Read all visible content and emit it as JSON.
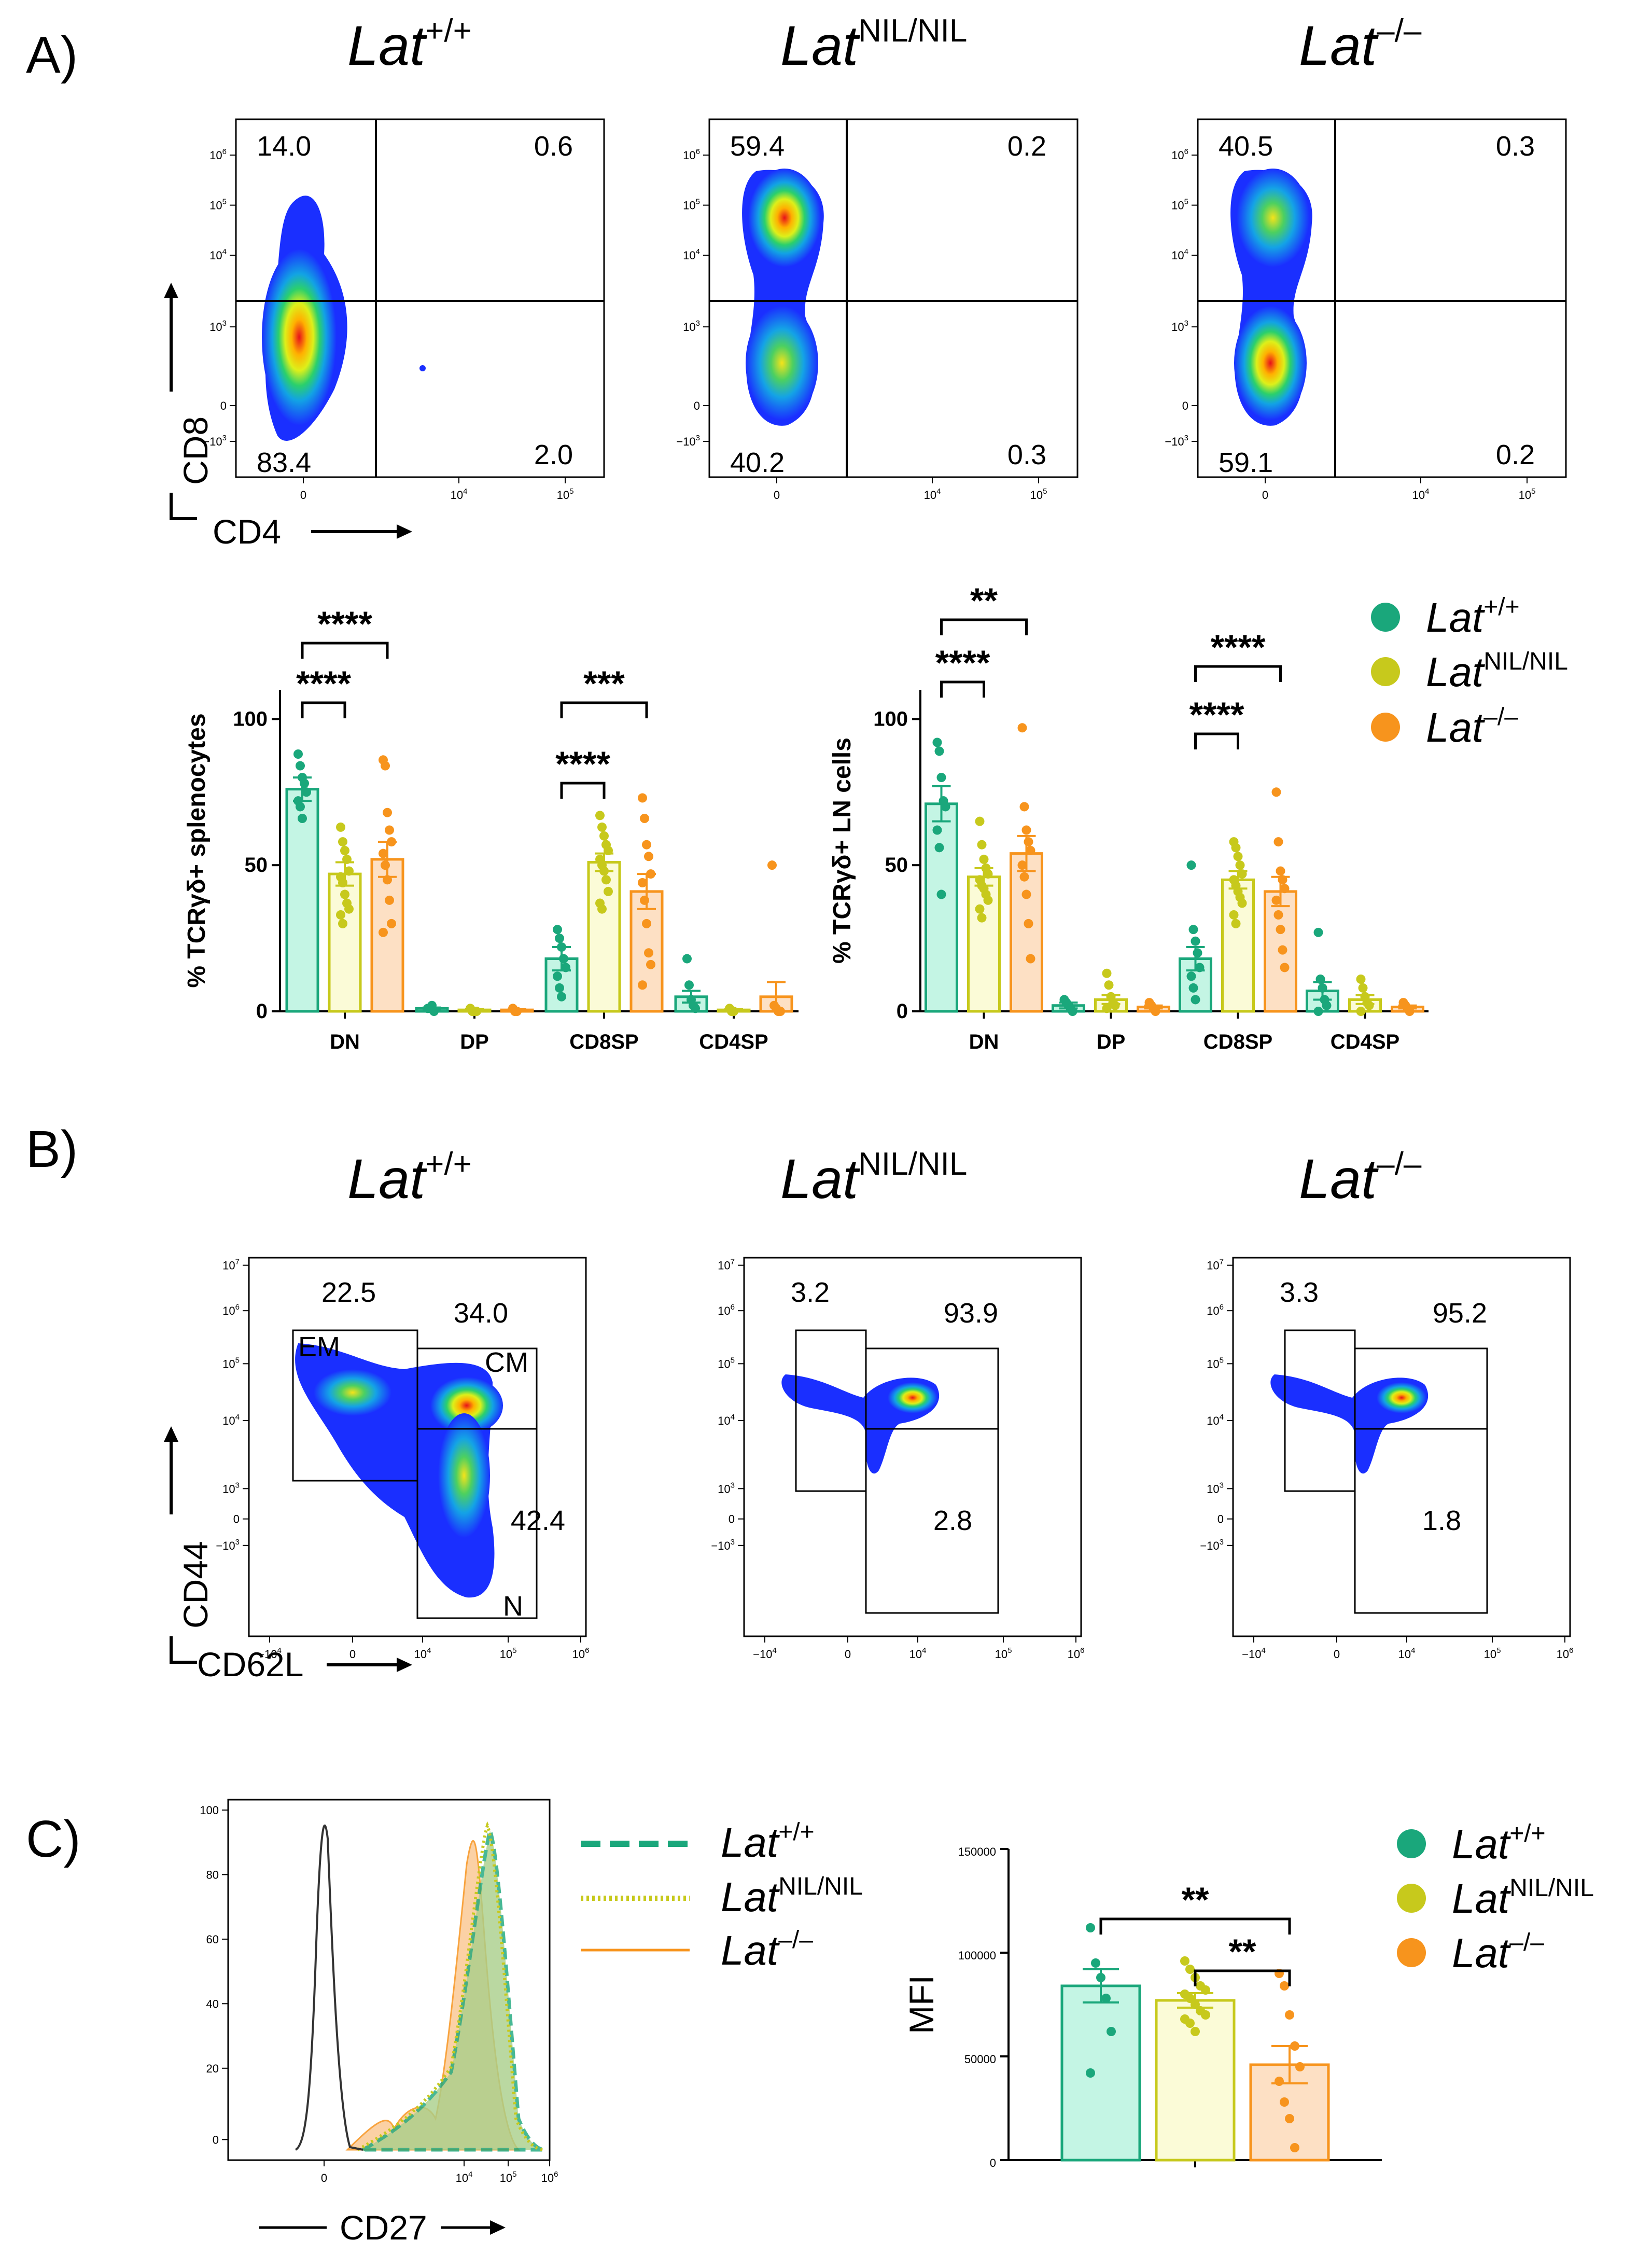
{
  "panels": {
    "a": "A)",
    "b": "B)",
    "c": "C)"
  },
  "genotypes": [
    {
      "base": "Lat",
      "sup": "+/+"
    },
    {
      "base": "Lat",
      "sup": "NIL/NIL"
    },
    {
      "base": "Lat",
      "sup": "–/–"
    }
  ],
  "colors": {
    "wt": "#1aa77b",
    "nil": "#c7c91c",
    "ko": "#f7941d",
    "wt_fill": "#c4f5e4",
    "nil_fill": "#fbfbd7",
    "ko_fill": "#fde0c4"
  },
  "flow_a": {
    "x_axis": "CD4",
    "y_axis": "CD8",
    "y_ticks": [
      "10^6",
      "10^5",
      "10^4",
      "10^3",
      "0",
      "-10^3"
    ],
    "x_ticks": [
      "0",
      "10^4",
      "10^5"
    ],
    "plots": [
      {
        "ul": "14.0",
        "ur": "0.6",
        "ll": "83.4",
        "lr": "2.0"
      },
      {
        "ul": "59.4",
        "ur": "0.2",
        "ll": "40.2",
        "lr": "0.3"
      },
      {
        "ul": "40.5",
        "ur": "0.3",
        "ll": "59.1",
        "lr": "0.2"
      }
    ]
  },
  "flow_b": {
    "x_axis": "CD62L",
    "y_axis": "CD44",
    "y_ticks": [
      "10^7",
      "10^6",
      "10^5",
      "10^4",
      "10^3",
      "0",
      "-10^3"
    ],
    "x_ticks": [
      "-10^4",
      "0",
      "10^4",
      "10^5",
      "10^6"
    ],
    "gate_names": {
      "em": "EM",
      "cm": "CM",
      "n": "N"
    },
    "plots": [
      {
        "em": "22.5",
        "cm": "34.0",
        "n": "42.4"
      },
      {
        "em": "3.2",
        "cm": "93.9",
        "n": "2.8"
      },
      {
        "em": "3.3",
        "cm": "95.2",
        "n": "1.8"
      }
    ]
  },
  "histogram_c": {
    "x_axis": "CD27",
    "y_ticks": [
      "100",
      "80",
      "60",
      "40",
      "20",
      "0"
    ],
    "x_ticks": [
      "0",
      "10^4",
      "10^5",
      "10^6"
    ]
  },
  "chart_data": [
    {
      "type": "bar",
      "title": "",
      "ylabel": "% TCRγδ+ splenocytes",
      "categories": [
        "DN",
        "DP",
        "CD8SP",
        "CD4SP"
      ],
      "ylim": [
        0,
        110
      ],
      "yticks": [
        "0",
        "50",
        "100"
      ],
      "series": [
        {
          "name": "Lat+/+",
          "values": [
            76,
            1,
            18,
            5
          ],
          "sem": [
            4,
            0.3,
            4,
            2
          ],
          "points": [
            [
              88,
              84,
              80,
              78,
              75,
              72,
              70,
              66
            ],
            [
              1,
              1,
              2,
              0
            ],
            [
              28,
              25,
              22,
              18,
              15,
              12,
              8,
              5
            ],
            [
              18,
              9,
              4,
              2,
              1
            ]
          ]
        },
        {
          "name": "LatNIL/NIL",
          "values": [
            47,
            0.5,
            51,
            0.5
          ],
          "sem": [
            4,
            0.2,
            3,
            0.2
          ],
          "points": [
            [
              63,
              58,
              55,
              52,
              48,
              46,
              44,
              40,
              37,
              35,
              33,
              30
            ],
            [
              1,
              0,
              0,
              0
            ],
            [
              67,
              63,
              60,
              57,
              55,
              52,
              50,
              48,
              45,
              41,
              37,
              35
            ],
            [
              1,
              0,
              0
            ]
          ]
        },
        {
          "name": "Lat–/–",
          "values": [
            52,
            0.5,
            41,
            5
          ],
          "sem": [
            6,
            0.2,
            6,
            5
          ],
          "points": [
            [
              86,
              84,
              68,
              62,
              58,
              54,
              50,
              45,
              38,
              30,
              27
            ],
            [
              1,
              0,
              0
            ],
            [
              73,
              66,
              57,
              53,
              47,
              44,
              38,
              30,
              20,
              16,
              9
            ],
            [
              50,
              2,
              1,
              0,
              0
            ]
          ]
        }
      ],
      "significance": [
        {
          "label": "****",
          "between": [
            "Lat+/+",
            "LatNIL/NIL"
          ],
          "category": "DN"
        },
        {
          "label": "****",
          "between": [
            "Lat+/+",
            "Lat–/–"
          ],
          "category": "DN"
        },
        {
          "label": "****",
          "between": [
            "Lat+/+",
            "LatNIL/NIL"
          ],
          "category": "CD8SP"
        },
        {
          "label": "***",
          "between": [
            "Lat+/+",
            "Lat–/–"
          ],
          "category": "CD8SP"
        }
      ]
    },
    {
      "type": "bar",
      "title": "",
      "ylabel": "% TCRγδ+ LN cells",
      "categories": [
        "DN",
        "DP",
        "CD8SP",
        "CD4SP"
      ],
      "ylim": [
        0,
        110
      ],
      "yticks": [
        "0",
        "50",
        "100"
      ],
      "series": [
        {
          "name": "Lat+/+",
          "values": [
            71,
            2,
            18,
            7
          ],
          "sem": [
            6,
            1,
            4,
            3
          ],
          "points": [
            [
              92,
              89,
              80,
              72,
              70,
              62,
              56,
              40
            ],
            [
              4,
              3,
              2,
              1,
              0
            ],
            [
              50,
              28,
              24,
              20,
              15,
              12,
              8,
              4
            ],
            [
              27,
              11,
              8,
              4,
              2,
              0
            ]
          ]
        },
        {
          "name": "LatNIL/NIL",
          "values": [
            46,
            4,
            45,
            4
          ],
          "sem": [
            3,
            1.5,
            3,
            1.5
          ],
          "points": [
            [
              65,
              57,
              52,
              49,
              47,
              45,
              43,
              42,
              40,
              38,
              35,
              32
            ],
            [
              13,
              9,
              5,
              3,
              2,
              1
            ],
            [
              58,
              56,
              53,
              50,
              47,
              45,
              43,
              41,
              39,
              37,
              33,
              30
            ],
            [
              11,
              8,
              5,
              3,
              2,
              0
            ]
          ]
        },
        {
          "name": "Lat–/–",
          "values": [
            54,
            1.5,
            41,
            1.5
          ],
          "sem": [
            6,
            0.5,
            5,
            0.5
          ],
          "points": [
            [
              97,
              70,
              62,
              58,
              55,
              50,
              46,
              40,
              30,
              18
            ],
            [
              3,
              2,
              1,
              0
            ],
            [
              75,
              58,
              48,
              45,
              42,
              38,
              33,
              28,
              21,
              15
            ],
            [
              3,
              2,
              1,
              0
            ]
          ]
        }
      ],
      "significance": [
        {
          "label": "****",
          "between": [
            "Lat+/+",
            "LatNIL/NIL"
          ],
          "category": "DN"
        },
        {
          "label": "**",
          "between": [
            "Lat+/+",
            "Lat–/–"
          ],
          "category": "DN"
        },
        {
          "label": "****",
          "between": [
            "Lat+/+",
            "LatNIL/NIL"
          ],
          "category": "CD8SP"
        },
        {
          "label": "****",
          "between": [
            "Lat+/+",
            "Lat–/–"
          ],
          "category": "CD8SP"
        }
      ]
    },
    {
      "type": "bar",
      "title": "",
      "ylabel": "MFI",
      "categories": [
        ""
      ],
      "ylim": [
        0,
        150000
      ],
      "yticks": [
        "0",
        "50000",
        "100000",
        "150000"
      ],
      "series": [
        {
          "name": "Lat+/+",
          "values": [
            84000
          ],
          "sem": [
            8000
          ],
          "points": [
            [
              112000,
              95000,
              88000,
              78000,
              62000,
              42000
            ]
          ]
        },
        {
          "name": "LatNIL/NIL",
          "values": [
            77000
          ],
          "sem": [
            3500
          ],
          "points": [
            [
              96000,
              92000,
              88000,
              84000,
              82000,
              80000,
              78000,
              75000,
              72000,
              70000,
              68000,
              66000,
              62000
            ]
          ]
        },
        {
          "name": "Lat–/–",
          "values": [
            46000
          ],
          "sem": [
            9000
          ],
          "points": [
            [
              90000,
              84000,
              70000,
              55000,
              45000,
              38000,
              28000,
              20000,
              6000
            ]
          ]
        }
      ],
      "significance": [
        {
          "label": "**",
          "between": [
            "Lat+/+",
            "Lat–/–"
          ]
        },
        {
          "label": "**",
          "between": [
            "LatNIL/NIL",
            "Lat–/–"
          ]
        }
      ]
    }
  ]
}
